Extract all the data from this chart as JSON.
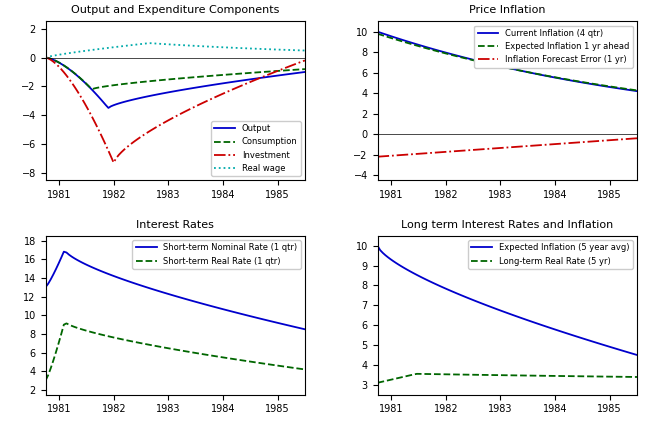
{
  "panel1": {
    "title": "Output and Expenditure Components",
    "xlabel": "",
    "ylabel": "",
    "xlim": [
      1980.75,
      1985.5
    ],
    "ylim": [
      -8.5,
      2.5
    ],
    "yticks": [
      -8,
      -6,
      -4,
      -2,
      0,
      2
    ],
    "xticks": [
      1981,
      1982,
      1983,
      1984,
      1985
    ],
    "legend_labels": [
      "Output",
      "Consumption",
      "Investment",
      "Real wage"
    ],
    "legend_loc": "lower right"
  },
  "panel2": {
    "title": "Price Inflation",
    "xlabel": "",
    "ylabel": "",
    "xlim": [
      1980.75,
      1985.5
    ],
    "ylim": [
      -4.5,
      11
    ],
    "yticks": [
      -4,
      -2,
      0,
      2,
      4,
      6,
      8,
      10
    ],
    "xticks": [
      1981,
      1982,
      1983,
      1984,
      1985
    ],
    "legend_labels": [
      "Current Inflation (4 qtr)",
      "Expected Inflation 1 yr ahead",
      "Inflation Forecast Error (1 yr)"
    ],
    "legend_loc": "upper right"
  },
  "panel3": {
    "title": "Interest Rates",
    "xlabel": "",
    "ylabel": "",
    "xlim": [
      1980.75,
      1985.5
    ],
    "ylim": [
      1.5,
      18.5
    ],
    "yticks": [
      2,
      4,
      6,
      8,
      10,
      12,
      14,
      16,
      18
    ],
    "xticks": [
      1981,
      1982,
      1983,
      1984,
      1985
    ],
    "legend_labels": [
      "Short-term Nominal Rate (1 qtr)",
      "Short-term Real Rate (1 qtr)"
    ],
    "legend_loc": "upper right"
  },
  "panel4": {
    "title": "Long term Interest Rates and Inflation",
    "xlabel": "",
    "ylabel": "",
    "xlim": [
      1980.75,
      1985.5
    ],
    "ylim": [
      2.5,
      10.5
    ],
    "yticks": [
      3,
      4,
      5,
      6,
      7,
      8,
      9,
      10
    ],
    "xticks": [
      1981,
      1982,
      1983,
      1984,
      1985
    ],
    "legend_labels": [
      "Expected Inflation (5 year avg)",
      "Long-term Real Rate (5 yr)"
    ],
    "legend_loc": "upper right"
  },
  "colors": {
    "blue": "#0000CC",
    "green": "#006600",
    "red": "#CC0000",
    "cyan": "#00AAAA"
  },
  "t_start": 1980.75,
  "t_end": 1985.5,
  "n_points": 100
}
